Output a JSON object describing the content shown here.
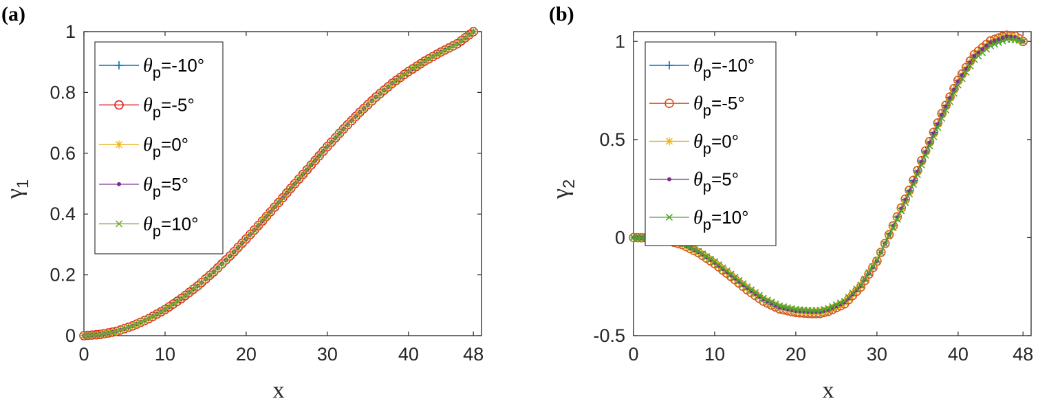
{
  "chart_data": [
    {
      "type": "line",
      "panel_label": "(a)",
      "xlabel": "x",
      "ylabel_symbol": "γ",
      "ylabel_sub": "1",
      "xlim": [
        0,
        49
      ],
      "ylim": [
        0,
        1
      ],
      "xticks": [
        0,
        10,
        20,
        30,
        40,
        48
      ],
      "xtick_labels": [
        "0",
        "10",
        "20",
        "30",
        "40",
        "48"
      ],
      "yticks": [
        0,
        0.2,
        0.4,
        0.6,
        0.8,
        1
      ],
      "ytick_labels": [
        "0",
        "0.2",
        "0.4",
        "0.6",
        "0.8",
        "1"
      ],
      "legend_position": "top-left",
      "x": [
        0,
        2,
        4,
        6,
        8,
        10,
        12,
        14,
        16,
        18,
        20,
        22,
        24,
        26,
        28,
        30,
        32,
        34,
        36,
        38,
        40,
        42,
        44,
        46,
        48
      ],
      "series": [
        {
          "name": "-10°",
          "marker": "plus",
          "color": "#0072BD",
          "values": [
            0,
            0.004,
            0.014,
            0.032,
            0.056,
            0.086,
            0.122,
            0.163,
            0.21,
            0.262,
            0.318,
            0.377,
            0.438,
            0.5,
            0.561,
            0.622,
            0.68,
            0.735,
            0.785,
            0.83,
            0.869,
            0.903,
            0.933,
            0.96,
            1.0
          ]
        },
        {
          "name": "-5°",
          "marker": "circle",
          "color": "#E41A1C",
          "values": [
            0,
            0.004,
            0.014,
            0.032,
            0.056,
            0.086,
            0.122,
            0.163,
            0.21,
            0.262,
            0.318,
            0.377,
            0.438,
            0.5,
            0.561,
            0.622,
            0.68,
            0.735,
            0.785,
            0.83,
            0.869,
            0.903,
            0.933,
            0.96,
            1.0
          ]
        },
        {
          "name": "0°",
          "marker": "star",
          "color": "#EDB120",
          "values": [
            0,
            0.004,
            0.014,
            0.032,
            0.056,
            0.086,
            0.122,
            0.163,
            0.21,
            0.262,
            0.318,
            0.377,
            0.438,
            0.5,
            0.561,
            0.622,
            0.68,
            0.735,
            0.785,
            0.83,
            0.869,
            0.903,
            0.933,
            0.96,
            1.0
          ]
        },
        {
          "name": "5°",
          "marker": "dot",
          "color": "#7E2F8E",
          "values": [
            0,
            0.004,
            0.014,
            0.032,
            0.056,
            0.086,
            0.122,
            0.163,
            0.21,
            0.262,
            0.318,
            0.377,
            0.438,
            0.5,
            0.561,
            0.622,
            0.68,
            0.735,
            0.785,
            0.83,
            0.869,
            0.903,
            0.933,
            0.96,
            1.0
          ]
        },
        {
          "name": "10°",
          "marker": "x",
          "color": "#77AC30",
          "values": [
            0,
            0.004,
            0.014,
            0.032,
            0.056,
            0.086,
            0.122,
            0.163,
            0.21,
            0.262,
            0.318,
            0.377,
            0.438,
            0.5,
            0.561,
            0.622,
            0.68,
            0.735,
            0.785,
            0.83,
            0.869,
            0.903,
            0.933,
            0.96,
            1.0
          ]
        }
      ]
    },
    {
      "type": "line",
      "panel_label": "(b)",
      "xlabel": "x",
      "ylabel_symbol": "γ",
      "ylabel_sub": "2",
      "xlim": [
        0,
        49
      ],
      "ylim": [
        -0.5,
        1.05
      ],
      "xticks": [
        0,
        10,
        20,
        30,
        40,
        48
      ],
      "xtick_labels": [
        "0",
        "10",
        "20",
        "30",
        "40",
        "48"
      ],
      "yticks": [
        -0.5,
        0,
        0.5,
        1
      ],
      "ytick_labels": [
        "-0.5",
        "0",
        "0.5",
        "1"
      ],
      "legend_position": "top-left",
      "x": [
        0,
        2,
        4,
        6,
        8,
        10,
        12,
        14,
        16,
        18,
        20,
        22,
        23,
        24,
        26,
        28,
        30,
        32,
        34,
        36,
        38,
        40,
        42,
        44,
        46,
        47,
        48
      ],
      "series": [
        {
          "name": "-10°",
          "marker": "plus",
          "color": "#0072BD",
          "values": [
            0,
            -0.002,
            -0.012,
            -0.035,
            -0.075,
            -0.13,
            -0.195,
            -0.262,
            -0.32,
            -0.36,
            -0.378,
            -0.384,
            -0.383,
            -0.372,
            -0.335,
            -0.25,
            -0.12,
            0.06,
            0.24,
            0.44,
            0.63,
            0.8,
            0.93,
            1.0,
            1.03,
            1.025,
            1.0
          ]
        },
        {
          "name": "-5°",
          "marker": "circle",
          "color": "#D95319",
          "values": [
            0,
            -0.002,
            -0.012,
            -0.036,
            -0.077,
            -0.133,
            -0.198,
            -0.266,
            -0.324,
            -0.364,
            -0.382,
            -0.388,
            -0.387,
            -0.376,
            -0.338,
            -0.252,
            -0.12,
            0.06,
            0.242,
            0.442,
            0.632,
            0.802,
            0.933,
            1.003,
            1.032,
            1.028,
            1.0
          ]
        },
        {
          "name": "0°",
          "marker": "star",
          "color": "#EDB120",
          "values": [
            0,
            -0.002,
            -0.011,
            -0.034,
            -0.073,
            -0.128,
            -0.192,
            -0.258,
            -0.316,
            -0.356,
            -0.374,
            -0.38,
            -0.379,
            -0.368,
            -0.331,
            -0.247,
            -0.118,
            0.058,
            0.236,
            0.436,
            0.626,
            0.796,
            0.926,
            0.996,
            1.026,
            1.022,
            1.0
          ]
        },
        {
          "name": "5°",
          "marker": "dot",
          "color": "#7E2F8E",
          "values": [
            0,
            -0.002,
            -0.011,
            -0.034,
            -0.073,
            -0.128,
            -0.192,
            -0.258,
            -0.316,
            -0.356,
            -0.374,
            -0.38,
            -0.379,
            -0.368,
            -0.331,
            -0.247,
            -0.118,
            0.058,
            0.236,
            0.436,
            0.626,
            0.796,
            0.926,
            0.996,
            1.026,
            1.022,
            1.0
          ]
        },
        {
          "name": "10°",
          "marker": "x",
          "color": "#4DA32F",
          "values": [
            0,
            -0.002,
            -0.01,
            -0.032,
            -0.07,
            -0.123,
            -0.186,
            -0.251,
            -0.309,
            -0.348,
            -0.366,
            -0.372,
            -0.371,
            -0.361,
            -0.324,
            -0.242,
            -0.116,
            0.05,
            0.222,
            0.42,
            0.608,
            0.778,
            0.908,
            0.978,
            1.01,
            1.01,
            1.0
          ]
        }
      ]
    }
  ],
  "legend_prefix": "θ",
  "legend_sub": "p"
}
